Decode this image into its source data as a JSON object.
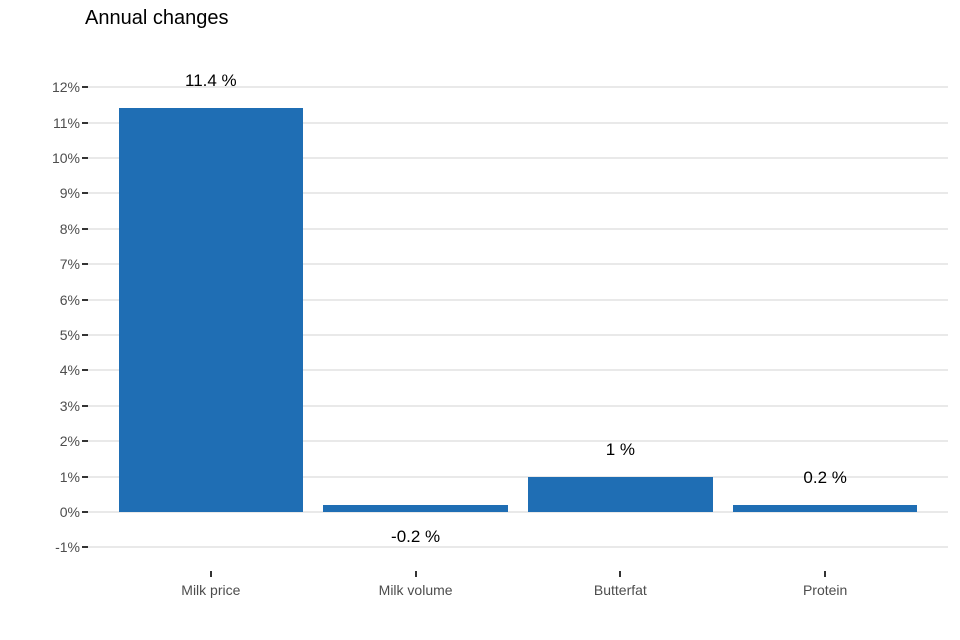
{
  "chart_data": {
    "type": "bar",
    "title": "Annual changes",
    "categories": [
      "Milk price",
      "Milk volume",
      "Butterfat",
      "Protein"
    ],
    "values": [
      11.4,
      -0.2,
      1,
      0.2
    ],
    "value_labels": [
      "11.4 %",
      "-0.2 %",
      "1 %",
      "0.2 %"
    ],
    "y_ticks": [
      12,
      11,
      10,
      9,
      8,
      7,
      6,
      5,
      4,
      3,
      2,
      1,
      0,
      -1
    ],
    "y_tick_labels": [
      "12%",
      "11%",
      "10%",
      "9%",
      "8%",
      "7%",
      "6%",
      "5%",
      "4%",
      "3%",
      "2%",
      "1%",
      "0%",
      "-1%"
    ],
    "ylim": [
      -1,
      12
    ],
    "xlabel": "",
    "ylabel": "",
    "grid": "horizontal-only",
    "legend": "none",
    "colors": {
      "bar": "#1f6eb4",
      "gridline": "#e9e9e9",
      "tick": "#333333",
      "axis_text": "#4d4d4d",
      "title": "#000000",
      "value_label": "#000000",
      "background": "#ffffff"
    }
  }
}
